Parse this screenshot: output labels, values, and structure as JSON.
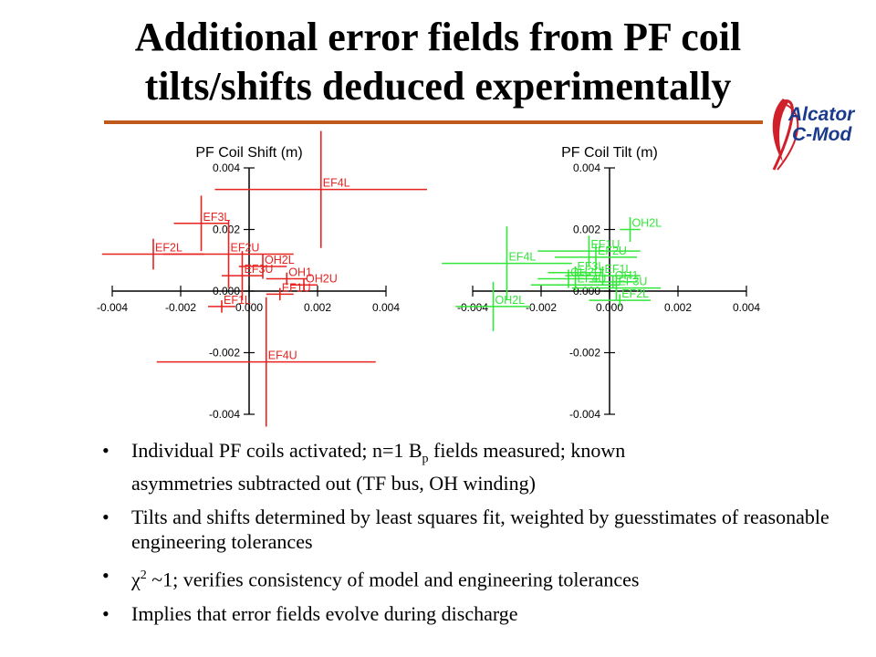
{
  "slide": {
    "title_line1": "Additional error fields from PF coil",
    "title_line2": "tilts/shifts deduced experimentally",
    "logo": {
      "line1": "Alcator",
      "line2": "C-Mod",
      "text_color": "#1a3a8c",
      "ribbon_color": "#d0202a"
    },
    "rule_color": "#c05a1c"
  },
  "chart_data": [
    {
      "type": "scatter",
      "title": "PF Coil Shift (m)",
      "color": "#e8221e",
      "xlim": [
        -0.004,
        0.004
      ],
      "ylim": [
        -0.004,
        0.004
      ],
      "xticks": [
        "-0.004",
        "-0.002",
        "0.000",
        "0.002",
        "0.004"
      ],
      "yticks": [
        "0.004",
        "0.002",
        "0.000",
        "-0.002",
        "-0.004"
      ],
      "points": [
        {
          "label": "EF4L",
          "x": 0.0021,
          "y": 0.0033,
          "xerr": 0.0031,
          "yerr": 0.0019
        },
        {
          "label": "EF3L",
          "x": -0.0014,
          "y": 0.0022,
          "xerr": 0.0008,
          "yerr": 0.0009
        },
        {
          "label": "EF2L",
          "x": -0.0028,
          "y": 0.0012,
          "xerr": 0.0015,
          "yerr": 0.0005
        },
        {
          "label": "EF2U",
          "x": -0.0006,
          "y": 0.0012,
          "xerr": 0.0019,
          "yerr": 0.0011
        },
        {
          "label": "OH2L",
          "x": 0.0004,
          "y": 0.0008,
          "xerr": 0.0007,
          "yerr": 0.0004
        },
        {
          "label": "EF3U",
          "x": -0.0002,
          "y": 0.0005,
          "xerr": 0.0006,
          "yerr": 0.0008
        },
        {
          "label": "OH1",
          "x": 0.0011,
          "y": 0.0004,
          "xerr": 0.0006,
          "yerr": 0.0002
        },
        {
          "label": "OH2U",
          "x": 0.0016,
          "y": 0.0002,
          "xerr": 0.0004,
          "yerr": 0.0002
        },
        {
          "label": "EF1U",
          "x": 0.0009,
          "y": -0.0001,
          "xerr": 0.0004,
          "yerr": 0.0002
        },
        {
          "label": "EF1L",
          "x": -0.0008,
          "y": -0.0005,
          "xerr": 0.0004,
          "yerr": 0.0002
        },
        {
          "label": "EF4U",
          "x": 0.0005,
          "y": -0.0023,
          "xerr": 0.0032,
          "yerr": 0.0021
        }
      ]
    },
    {
      "type": "scatter",
      "title": "PF Coil Tilt (m)",
      "color": "#33e63a",
      "xlim": [
        -0.004,
        0.004
      ],
      "ylim": [
        -0.004,
        0.004
      ],
      "xticks": [
        "-0.004",
        "-0.002",
        "0.000",
        "0.002",
        "0.004"
      ],
      "yticks": [
        "0.004",
        "0.002",
        "0.000",
        "-0.002",
        "-0.004"
      ],
      "points": [
        {
          "label": "OH2L",
          "x": 0.0006,
          "y": 0.002,
          "xerr": 0.0003,
          "yerr": 0.0004
        },
        {
          "label": "EF1U",
          "x": -0.0006,
          "y": 0.0013,
          "xerr": 0.0015,
          "yerr": 0.0005
        },
        {
          "label": "EF2U",
          "x": -0.0004,
          "y": 0.0011,
          "xerr": 0.0012,
          "yerr": 0.0004
        },
        {
          "label": "EF4L",
          "x": -0.003,
          "y": 0.0009,
          "xerr": 0.0019,
          "yerr": 0.0012
        },
        {
          "label": "EF3L",
          "x": -0.001,
          "y": 0.0006,
          "xerr": 0.0008,
          "yerr": 0.0002
        },
        {
          "label": "EF1L",
          "x": -0.0002,
          "y": 0.0005,
          "xerr": 0.0011,
          "yerr": 0.0003
        },
        {
          "label": "OH2U",
          "x": -0.0012,
          "y": 0.0004,
          "xerr": 0.0009,
          "yerr": 0.0003
        },
        {
          "label": "EF4U",
          "x": -0.001,
          "y": 0.0002,
          "xerr": 0.0013,
          "yerr": 0.0002
        },
        {
          "label": "OH1",
          "x": 0.0001,
          "y": 0.0003,
          "xerr": 0.0007,
          "yerr": 0.0002
        },
        {
          "label": "EF3U",
          "x": 0.0002,
          "y": 0.0001,
          "xerr": 0.0013,
          "yerr": 0.0004
        },
        {
          "label": "EF2L",
          "x": 0.0003,
          "y": -0.0003,
          "xerr": 0.0009,
          "yerr": 0.0002
        },
        {
          "label": "OH2L",
          "x": -0.0034,
          "y": -0.0005,
          "xerr": 0.0011,
          "yerr": 0.0008
        }
      ]
    }
  ],
  "bullets": {
    "b1_line1_pre": "Individual PF coils activated;   n=1 B",
    "b1_sub": "p",
    "b1_line1_post": " fields measured;   known",
    "b1_line2": "asymmetries subtracted out (TF bus, OH winding)",
    "b2": "Tilts and shifts determined by least squares fit, weighted by guesstimates of reasonable engineering tolerances",
    "b3_chi": "χ",
    "b3_sup": "2",
    "b3_rest": " ~1; verifies consistency of model and engineering tolerances",
    "b4": "Implies that error fields evolve during discharge",
    "bullet_glyph": "•"
  }
}
